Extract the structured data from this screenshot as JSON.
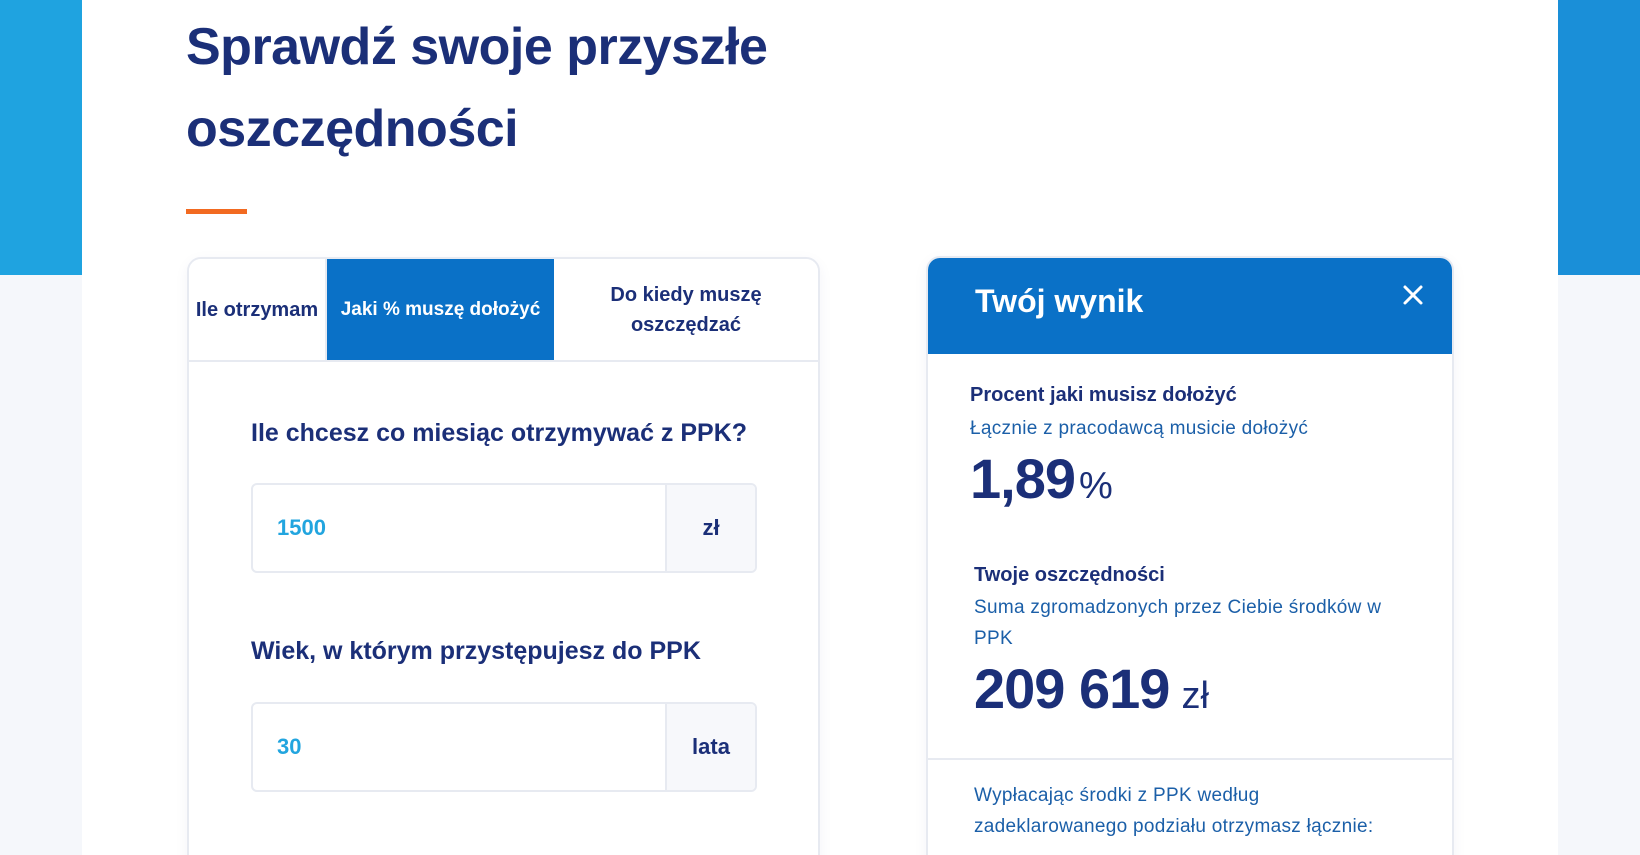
{
  "page": {
    "title": "Sprawdź swoje przyszłe oszczędności"
  },
  "tabs": [
    {
      "label": "Ile otrzymam",
      "active": false
    },
    {
      "label": "Jaki % muszę dołożyć",
      "active": true
    },
    {
      "label": "Do kiedy muszę oszczędzać",
      "active": false
    }
  ],
  "form": {
    "monthly": {
      "label": "Ile chcesz co miesiąc otrzymywać z PPK?",
      "value": "1500",
      "unit": "zł"
    },
    "age": {
      "label": "Wiek, w którym przystępujesz do PPK",
      "value": "30",
      "unit": "lata"
    }
  },
  "result": {
    "title": "Twój wynik",
    "percent": {
      "label": "Procent jaki musisz dołożyć",
      "sub": "Łącznie z pracodawcą musicie dołożyć",
      "value": "1,89",
      "suffix": "%"
    },
    "savings": {
      "label": "Twoje oszczędności",
      "sub": "Suma zgromadzonych przez Ciebie środków w PPK",
      "value": "209 619",
      "suffix": "zł"
    },
    "footer": "Wypłacając środki z PPK według zadeklarowanego podziału otrzymasz łącznie:"
  },
  "colors": {
    "brand_navy": "#1b2f78",
    "brand_blue": "#0a71c7",
    "accent_orange": "#f26a21",
    "input_value": "#22a5df"
  }
}
